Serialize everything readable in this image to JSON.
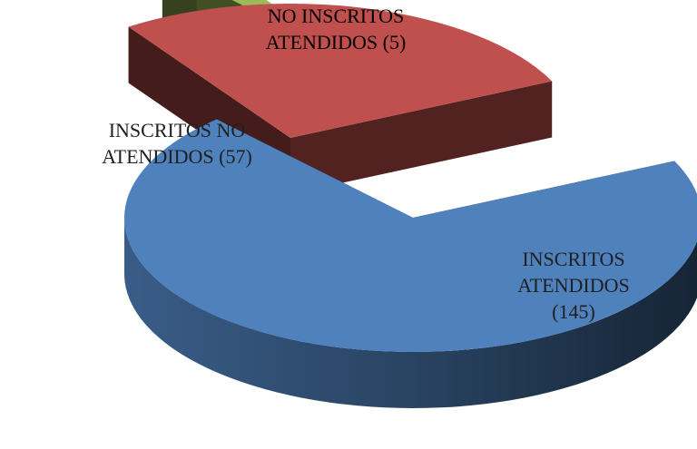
{
  "chart_data": {
    "type": "pie",
    "style": "3d-exploded",
    "title": "",
    "slices": [
      {
        "name": "INSCRITOS ATENDIDOS",
        "value": 145,
        "label_lines": [
          "INSCRITOS",
          "ATENDIDOS",
          "(145)"
        ],
        "color": "#4f81bd",
        "label_color": "#1f1f1f"
      },
      {
        "name": "NO INSCRITOS ATENDIDOS",
        "value": 5,
        "label_lines": [
          "NO INSCRITOS",
          "ATENDIDOS (5)"
        ],
        "color": "#9bbb59",
        "label_color": "#000000"
      },
      {
        "name": "INSCRITOS NO ATENDIDOS",
        "value": 57,
        "label_lines": [
          "INSCRITOS NO",
          "ATENDIDOS (57)"
        ],
        "color": "#c0504d",
        "label_color": "#1f1f1f"
      }
    ]
  }
}
